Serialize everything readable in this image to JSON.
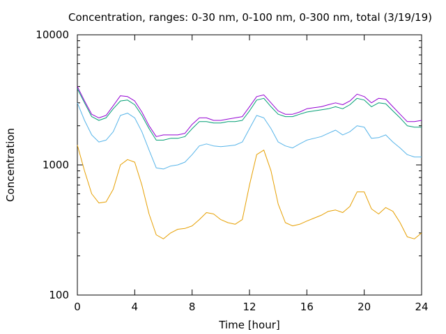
{
  "chart_data": {
    "type": "line",
    "title": "Concentration, ranges: 0-30 nm, 0-100 nm, 0-300 nm, total (3/19/19)",
    "xlabel": "Time [hour]",
    "ylabel": "Concentration",
    "xlim": [
      0,
      24
    ],
    "ylim": [
      100,
      10000
    ],
    "yscale": "log",
    "grid": false,
    "x_ticks": [
      "0",
      "4",
      "8",
      "12",
      "16",
      "20",
      "24"
    ],
    "y_ticks": [
      "100",
      "1000",
      "10000"
    ],
    "x": [
      0,
      0.5,
      1,
      1.5,
      2,
      2.5,
      3,
      3.5,
      4,
      4.5,
      5,
      5.5,
      6,
      6.5,
      7,
      7.5,
      8,
      8.5,
      9,
      9.5,
      10,
      10.5,
      11,
      11.5,
      12,
      12.5,
      13,
      13.5,
      14,
      14.5,
      15,
      15.5,
      16,
      16.5,
      17,
      17.5,
      18,
      18.5,
      19,
      19.5,
      20,
      20.5,
      21,
      21.5,
      22,
      22.5,
      23,
      23.5,
      24
    ],
    "series": [
      {
        "color": "#e69f00",
        "values": [
          1420,
          900,
          600,
          510,
          520,
          650,
          1000,
          1100,
          1050,
          700,
          420,
          290,
          270,
          300,
          320,
          325,
          340,
          380,
          430,
          420,
          380,
          360,
          350,
          380,
          700,
          1200,
          1300,
          900,
          500,
          360,
          340,
          350,
          370,
          390,
          410,
          440,
          450,
          430,
          480,
          620,
          620,
          460,
          420,
          470,
          440,
          360,
          280,
          270,
          300
        ]
      },
      {
        "color": "#56b4e9",
        "values": [
          3000,
          2200,
          1700,
          1500,
          1550,
          1800,
          2400,
          2500,
          2300,
          1800,
          1300,
          950,
          930,
          980,
          1000,
          1050,
          1200,
          1400,
          1450,
          1400,
          1380,
          1400,
          1420,
          1500,
          1900,
          2400,
          2300,
          1900,
          1500,
          1400,
          1350,
          1450,
          1550,
          1600,
          1650,
          1750,
          1850,
          1700,
          1800,
          2000,
          1950,
          1600,
          1620,
          1700,
          1500,
          1350,
          1200,
          1150,
          1150
        ]
      },
      {
        "color": "#009e73",
        "values": [
          3850,
          3000,
          2350,
          2200,
          2300,
          2700,
          3100,
          3150,
          2900,
          2400,
          1900,
          1550,
          1550,
          1600,
          1600,
          1650,
          1900,
          2150,
          2150,
          2100,
          2100,
          2150,
          2150,
          2200,
          2600,
          3150,
          3250,
          2800,
          2450,
          2350,
          2350,
          2450,
          2550,
          2600,
          2650,
          2700,
          2800,
          2700,
          2900,
          3250,
          3150,
          2800,
          3000,
          2950,
          2600,
          2300,
          2000,
          1950,
          1950
        ]
      },
      {
        "color": "#9400d3",
        "values": [
          4000,
          3100,
          2450,
          2300,
          2400,
          2850,
          3400,
          3350,
          3100,
          2550,
          2000,
          1650,
          1700,
          1700,
          1700,
          1750,
          2050,
          2300,
          2300,
          2200,
          2200,
          2250,
          2300,
          2350,
          2800,
          3350,
          3450,
          3000,
          2600,
          2450,
          2450,
          2550,
          2700,
          2750,
          2800,
          2900,
          3000,
          2900,
          3100,
          3500,
          3350,
          3000,
          3250,
          3200,
          2800,
          2450,
          2150,
          2150,
          2200
        ]
      }
    ]
  }
}
